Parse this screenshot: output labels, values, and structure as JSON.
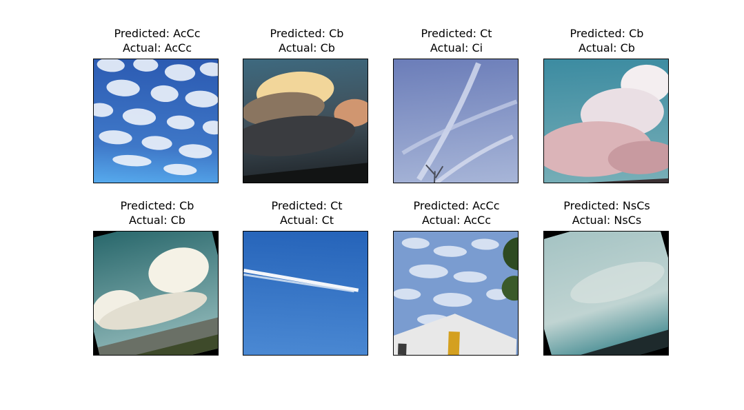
{
  "figure": {
    "panels": [
      {
        "predicted": "Predicted: AcCc",
        "actual": "Actual: AcCc",
        "scene": "altocumulus sky with dense white cloudlets on deep blue"
      },
      {
        "predicted": "Predicted: Cb",
        "actual": "Actual: Cb",
        "scene": "towering cumulonimbus lit gold above dark ground"
      },
      {
        "predicted": "Predicted: Ct",
        "actual": "Actual: Ci",
        "scene": "thin streaky cirrus over pale blue sky with bare tree"
      },
      {
        "predicted": "Predicted: Cb",
        "actual": "Actual: Cb",
        "scene": "pink-white cumulonimbus tower on teal sky"
      },
      {
        "predicted": "Predicted: Cb",
        "actual": "Actual: Cb",
        "scene": "white cumulus clouds over green horizon"
      },
      {
        "predicted": "Predicted: Ct",
        "actual": "Actual: Ct",
        "scene": "contrail across clear blue sky"
      },
      {
        "predicted": "Predicted: AcCc",
        "actual": "Actual: AcCc",
        "scene": "cirrocumulus sky with building and trees"
      },
      {
        "predicted": "Predicted: NsCs",
        "actual": "Actual: NsCs",
        "scene": "uniform grey-teal overcast sky"
      }
    ]
  }
}
